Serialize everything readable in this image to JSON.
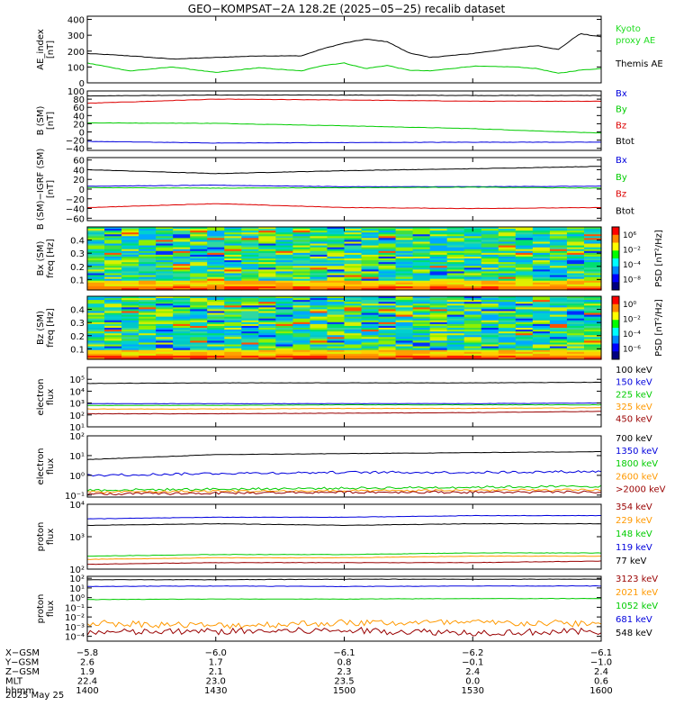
{
  "title": "GEO−KOMPSAT−2A 128.2E (2025−05−25) recalib dataset",
  "date_label": "2025 May 25",
  "colors": {
    "black": "#000000",
    "red": "#dd0000",
    "green": "#00cc00",
    "blue": "#0000dd",
    "orange": "#ff9900",
    "darkred": "#990000",
    "kyoto": "#22dd22",
    "navy": "#0000aa"
  },
  "x_axis": {
    "range": [
      1400,
      1600
    ],
    "ticks": [
      1400,
      1430,
      1500,
      1530,
      1600
    ],
    "rows": [
      {
        "name": "X−GSM",
        "values": [
          "−5.8",
          "−6.0",
          "−6.1",
          "−6.2",
          "−6.1"
        ]
      },
      {
        "name": "Y−GSM",
        "values": [
          "2.6",
          "1.7",
          "0.8",
          "−0.1",
          "−1.0"
        ]
      },
      {
        "name": "Z−GSM",
        "values": [
          "1.9",
          "2.1",
          "2.3",
          "2.4",
          "2.4"
        ]
      },
      {
        "name": "MLT",
        "values": [
          "22.4",
          "23.0",
          "23.5",
          "0.0",
          "0.6"
        ]
      },
      {
        "name": "hhmm",
        "values": [
          "1400",
          "1430",
          "1500",
          "1530",
          "1600"
        ]
      }
    ]
  },
  "chart_data": [
    {
      "id": "ae",
      "type": "line",
      "ylabel": [
        "AE_index",
        "[nT]"
      ],
      "ylim": [
        0,
        420
      ],
      "yscale": "linear",
      "yticks": [
        {
          "v": 0,
          "t": "0"
        },
        {
          "v": 100,
          "t": "100"
        },
        {
          "v": 200,
          "t": "200"
        },
        {
          "v": 300,
          "t": "300"
        },
        {
          "v": 400,
          "t": "400"
        }
      ],
      "legend": [
        {
          "text": "Kyoto",
          "color": "kyoto"
        },
        {
          "text": "proxy AE",
          "color": "kyoto"
        },
        {
          "text": "",
          "color": "black"
        },
        {
          "text": "Themis AE",
          "color": "black"
        }
      ],
      "x": [
        1400,
        1410,
        1420,
        1430,
        1440,
        1450,
        1455,
        1500,
        1505,
        1510,
        1515,
        1520,
        1530,
        1540,
        1545,
        1550,
        1555,
        1600
      ],
      "series": [
        {
          "color": "black",
          "values": [
            185,
            170,
            150,
            160,
            170,
            170,
            215,
            250,
            275,
            260,
            190,
            160,
            185,
            220,
            235,
            210,
            310,
            290
          ]
        },
        {
          "color": "green",
          "values": [
            125,
            75,
            100,
            65,
            95,
            75,
            110,
            125,
            90,
            110,
            80,
            75,
            105,
            100,
            90,
            60,
            80,
            90
          ]
        }
      ]
    },
    {
      "id": "bsm",
      "type": "line",
      "ylabel": [
        "B (SM)",
        "[nT]"
      ],
      "ylim": [
        -45,
        100
      ],
      "yscale": "linear",
      "yticks": [
        {
          "v": -40,
          "t": "−40"
        },
        {
          "v": -20,
          "t": "−20"
        },
        {
          "v": 0,
          "t": "0"
        },
        {
          "v": 20,
          "t": "20"
        },
        {
          "v": 40,
          "t": "40"
        },
        {
          "v": 60,
          "t": "60"
        },
        {
          "v": 80,
          "t": "80"
        },
        {
          "v": 100,
          "t": "100"
        }
      ],
      "legend": [
        {
          "text": "Bx",
          "color": "blue"
        },
        {
          "text": "By",
          "color": "green"
        },
        {
          "text": "Bz",
          "color": "red"
        },
        {
          "text": "Btot",
          "color": "black"
        }
      ],
      "x": [
        1400,
        1430,
        1500,
        1530,
        1600
      ],
      "series": [
        {
          "color": "black",
          "values": [
            88,
            90,
            90,
            89,
            89
          ]
        },
        {
          "color": "red",
          "values": [
            70,
            80,
            78,
            75,
            75
          ]
        },
        {
          "color": "green",
          "values": [
            22,
            21,
            15,
            8,
            -3
          ]
        },
        {
          "color": "blue",
          "values": [
            -23,
            -27,
            -26,
            -25,
            -25
          ]
        }
      ]
    },
    {
      "id": "bigrf",
      "type": "line",
      "ylabel": [
        "B (SM)−IGRF (SM)",
        "[nT]"
      ],
      "ylim": [
        -65,
        65
      ],
      "yscale": "linear",
      "yticks": [
        {
          "v": -60,
          "t": "−60"
        },
        {
          "v": -40,
          "t": "−40"
        },
        {
          "v": -20,
          "t": "−20"
        },
        {
          "v": 0,
          "t": "0"
        },
        {
          "v": 20,
          "t": "20"
        },
        {
          "v": 40,
          "t": "40"
        },
        {
          "v": 60,
          "t": "60"
        }
      ],
      "legend": [
        {
          "text": "Bx",
          "color": "blue"
        },
        {
          "text": "By",
          "color": "green"
        },
        {
          "text": "Bz",
          "color": "red"
        },
        {
          "text": "Btot",
          "color": "black"
        }
      ],
      "x": [
        1400,
        1430,
        1500,
        1530,
        1600
      ],
      "series": [
        {
          "color": "black",
          "values": [
            40,
            32,
            38,
            42,
            47
          ]
        },
        {
          "color": "blue",
          "values": [
            6,
            8,
            5,
            5,
            6
          ]
        },
        {
          "color": "green",
          "values": [
            3,
            2,
            3,
            4,
            2
          ]
        },
        {
          "color": "red",
          "values": [
            -38,
            -30,
            -38,
            -40,
            -38
          ]
        }
      ]
    },
    {
      "id": "bxspec",
      "type": "heatmap",
      "ylabel": [
        "Bx (SM)",
        "freq [Hz]"
      ],
      "ylim": [
        0.02,
        0.5
      ],
      "yscale": "linear",
      "yticks": [
        {
          "v": 0.1,
          "t": "0.1"
        },
        {
          "v": 0.2,
          "t": "0.2"
        },
        {
          "v": 0.3,
          "t": "0.3"
        },
        {
          "v": 0.4,
          "t": "0.4"
        }
      ],
      "colorbar": {
        "label": "PSD [nT²/Hz]",
        "ticks": [
          "10⁶",
          "10⁻²",
          "10⁻⁴",
          "10⁻⁸"
        ]
      }
    },
    {
      "id": "bzspec",
      "type": "heatmap",
      "ylabel": [
        "Bz (SM)",
        "freq [Hz]"
      ],
      "ylim": [
        0.02,
        0.5
      ],
      "yscale": "linear",
      "yticks": [
        {
          "v": 0.1,
          "t": "0.1"
        },
        {
          "v": 0.2,
          "t": "0.2"
        },
        {
          "v": 0.3,
          "t": "0.3"
        },
        {
          "v": 0.4,
          "t": "0.4"
        }
      ],
      "colorbar": {
        "label": "PSD [nT²/Hz]",
        "ticks": [
          "10⁰",
          "10⁻²",
          "10⁻⁴",
          "10⁻⁶"
        ]
      }
    },
    {
      "id": "elec1",
      "type": "line",
      "ylabel": [
        "electron",
        "flux"
      ],
      "ylim": [
        1,
        6
      ],
      "yscale": "log",
      "yticks": [
        {
          "v": 1,
          "t": "10¹"
        },
        {
          "v": 2,
          "t": "10²"
        },
        {
          "v": 3,
          "t": "10³"
        },
        {
          "v": 4,
          "t": "10⁴"
        },
        {
          "v": 5,
          "t": "10⁵"
        }
      ],
      "legend": [
        {
          "text": "100 keV",
          "color": "black"
        },
        {
          "text": "150 keV",
          "color": "blue"
        },
        {
          "text": "225 keV",
          "color": "green"
        },
        {
          "text": "325 keV",
          "color": "orange"
        },
        {
          "text": "450 keV",
          "color": "darkred"
        }
      ],
      "x": [
        1400,
        1430,
        1500,
        1530,
        1600
      ],
      "series": [
        {
          "color": "black",
          "values": [
            4.65,
            4.7,
            4.7,
            4.7,
            4.75
          ]
        },
        {
          "color": "blue",
          "values": [
            2.95,
            2.95,
            2.95,
            2.95,
            3.0
          ]
        },
        {
          "color": "green",
          "values": [
            2.8,
            2.8,
            2.85,
            2.85,
            2.85
          ]
        },
        {
          "color": "orange",
          "values": [
            2.5,
            2.5,
            2.55,
            2.55,
            2.6
          ]
        },
        {
          "color": "darkred",
          "values": [
            2.1,
            2.1,
            2.15,
            2.2,
            2.3
          ]
        }
      ]
    },
    {
      "id": "elec2",
      "type": "line",
      "ylabel": [
        "electron",
        "flux"
      ],
      "ylim": [
        -1.1,
        2
      ],
      "yscale": "log",
      "yticks": [
        {
          "v": -1,
          "t": "10⁻¹"
        },
        {
          "v": 0,
          "t": "10⁰"
        },
        {
          "v": 1,
          "t": "10¹"
        },
        {
          "v": 2,
          "t": "10²"
        }
      ],
      "legend": [
        {
          "text": "700 keV",
          "color": "black"
        },
        {
          "text": "1350 keV",
          "color": "blue"
        },
        {
          "text": "1800 keV",
          "color": "green"
        },
        {
          "text": "2600 keV",
          "color": "orange"
        },
        {
          "text": ">2000 keV",
          "color": "darkred"
        }
      ],
      "x": [
        1400,
        1430,
        1500,
        1530,
        1600
      ],
      "series": [
        {
          "color": "black",
          "values": [
            0.8,
            1.05,
            1.1,
            1.15,
            1.2
          ]
        },
        {
          "color": "blue",
          "values": [
            0.0,
            0.1,
            0.15,
            0.15,
            0.2
          ]
        },
        {
          "color": "green",
          "values": [
            -0.75,
            -0.7,
            -0.65,
            -0.6,
            -0.55
          ]
        },
        {
          "color": "orange",
          "values": [
            -0.85,
            -0.8,
            -0.8,
            -0.75,
            -0.75
          ]
        },
        {
          "color": "darkred",
          "values": [
            -0.95,
            -0.9,
            -0.85,
            -0.85,
            -0.85
          ]
        }
      ]
    },
    {
      "id": "prot1",
      "type": "line",
      "ylabel": [
        "proton",
        "flux"
      ],
      "ylim": [
        2,
        4
      ],
      "yscale": "log",
      "yticks": [
        {
          "v": 2,
          "t": "10²"
        },
        {
          "v": 3,
          "t": "10³"
        },
        {
          "v": 4,
          "t": "10⁴"
        }
      ],
      "legend": [
        {
          "text": "354 keV",
          "color": "darkred"
        },
        {
          "text": "229 keV",
          "color": "orange"
        },
        {
          "text": "148 keV",
          "color": "green"
        },
        {
          "text": "119 keV",
          "color": "blue"
        },
        {
          "text": "77 keV",
          "color": "black"
        }
      ],
      "x": [
        1400,
        1430,
        1500,
        1530,
        1600
      ],
      "series": [
        {
          "color": "blue",
          "values": [
            3.55,
            3.6,
            3.6,
            3.65,
            3.65
          ]
        },
        {
          "color": "black",
          "values": [
            3.35,
            3.4,
            3.35,
            3.4,
            3.4
          ]
        },
        {
          "color": "green",
          "values": [
            2.4,
            2.45,
            2.45,
            2.5,
            2.5
          ]
        },
        {
          "color": "orange",
          "values": [
            2.3,
            2.35,
            2.35,
            2.4,
            2.4
          ]
        },
        {
          "color": "darkred",
          "values": [
            2.15,
            2.2,
            2.2,
            2.2,
            2.25
          ]
        }
      ]
    },
    {
      "id": "prot2",
      "type": "line",
      "ylabel": [
        "proton",
        "flux"
      ],
      "ylim": [
        -4.5,
        2.2
      ],
      "yscale": "log",
      "yticks": [
        {
          "v": -4,
          "t": "10⁻⁴"
        },
        {
          "v": -3,
          "t": "10⁻³"
        },
        {
          "v": -2,
          "t": "10⁻²"
        },
        {
          "v": -1,
          "t": "10⁻¹"
        },
        {
          "v": 0,
          "t": "10⁰"
        },
        {
          "v": 1,
          "t": "10¹"
        },
        {
          "v": 2,
          "t": "10²"
        }
      ],
      "legend": [
        {
          "text": "3123 keV",
          "color": "darkred"
        },
        {
          "text": "2021 keV",
          "color": "orange"
        },
        {
          "text": "1052 keV",
          "color": "green"
        },
        {
          "text": "681 keV",
          "color": "blue"
        },
        {
          "text": "548 keV",
          "color": "black"
        }
      ],
      "x": [
        1400,
        1430,
        1500,
        1530,
        1600
      ],
      "series": [
        {
          "color": "black",
          "values": [
            1.85,
            1.85,
            1.9,
            1.9,
            1.9
          ]
        },
        {
          "color": "blue",
          "values": [
            1.15,
            1.2,
            1.15,
            1.2,
            1.2
          ]
        },
        {
          "color": "green",
          "values": [
            -0.2,
            -0.15,
            -0.15,
            -0.1,
            -0.1
          ]
        },
        {
          "color": "orange",
          "values": [
            -2.6,
            -2.9,
            -2.6,
            -2.6,
            -2.7
          ]
        },
        {
          "color": "darkred",
          "values": [
            -3.6,
            -3.5,
            -3.4,
            -3.6,
            -3.5
          ]
        }
      ]
    }
  ]
}
